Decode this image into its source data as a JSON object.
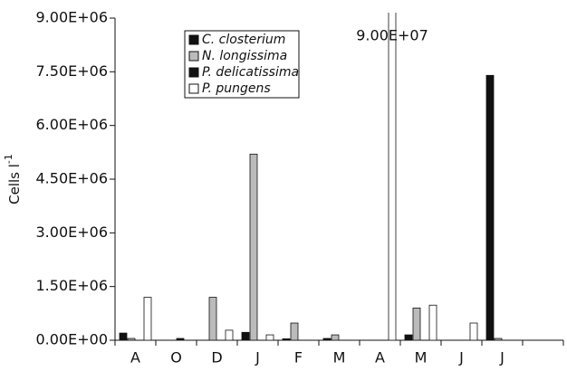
{
  "chart_data": {
    "type": "bar",
    "y_label": "Cells l",
    "y_label_sup": "-1",
    "categories": [
      "A",
      "O",
      "D",
      "J",
      "F",
      "M",
      "A",
      "M",
      "J",
      "J",
      null
    ],
    "series": [
      {
        "name": "C. closterium",
        "color": "#111111",
        "values": [
          200000,
          0,
          0,
          220000,
          40000,
          50000,
          0,
          150000,
          0,
          7400000,
          null
        ]
      },
      {
        "name": "N. longissima",
        "color": "#bbbbbb",
        "values": [
          50000,
          0,
          1200000,
          5200000,
          480000,
          150000,
          0,
          900000,
          0,
          50000,
          null
        ]
      },
      {
        "name": "P. delicatissima",
        "color": "#111111",
        "values": [
          0,
          50000,
          0,
          0,
          0,
          0,
          0,
          0,
          0,
          0,
          null
        ]
      },
      {
        "name": "P. pungens",
        "color": "#ffffff",
        "values": [
          1200000,
          0,
          280000,
          150000,
          0,
          0,
          90000000,
          980000,
          480000,
          0,
          null
        ],
        "value_labels": [
          null,
          null,
          null,
          null,
          null,
          null,
          "9.00E+07",
          null,
          null,
          null,
          null
        ]
      }
    ],
    "ylim": [
      0,
      9000000
    ],
    "yticks": [
      {
        "value": 0,
        "label": "0.00E+00"
      },
      {
        "value": 1500000,
        "label": "1.50E+06"
      },
      {
        "value": 3000000,
        "label": "3.00E+06"
      },
      {
        "value": 4500000,
        "label": "4.50E+06"
      },
      {
        "value": 6000000,
        "label": "6.00E+06"
      },
      {
        "value": 7500000,
        "label": "7.50E+06"
      },
      {
        "value": 9000000,
        "label": "9.00E+06"
      }
    ],
    "grid": false
  }
}
